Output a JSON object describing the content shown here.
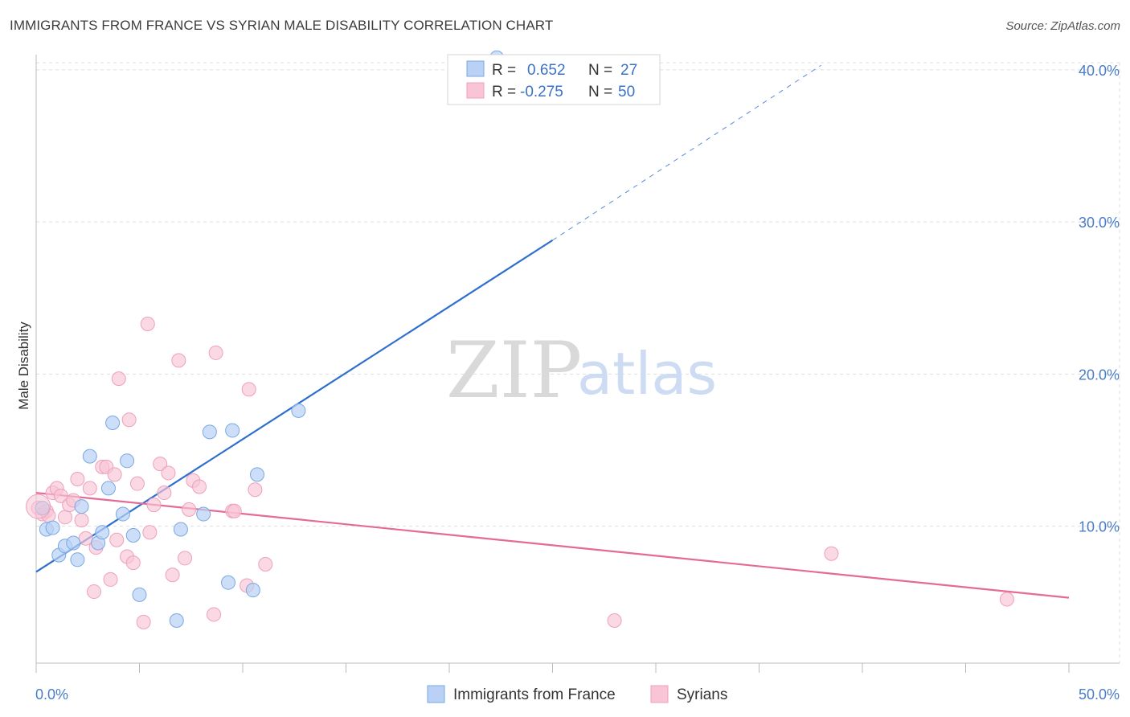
{
  "title": "IMMIGRANTS FROM FRANCE VS SYRIAN MALE DISABILITY CORRELATION CHART",
  "source": "Source: ZipAtlas.com",
  "watermark": {
    "zip": "ZIP",
    "atlas": "atlas"
  },
  "chart_data": {
    "type": "scatter",
    "xlabel": "",
    "ylabel": "Male Disability",
    "xlim": [
      0,
      50
    ],
    "ylim": [
      1,
      41
    ],
    "x_tick_labels": [
      "0.0%",
      "50.0%"
    ],
    "y_ticks": [
      10,
      20,
      30,
      40
    ],
    "y_tick_labels": [
      "10.0%",
      "20.0%",
      "30.0%",
      "40.0%"
    ],
    "grid": true,
    "legend": {
      "placement": "top-center",
      "entries": [
        {
          "r_label": "R =",
          "r_value": "0.652",
          "n_label": "N =",
          "n_value": "27"
        },
        {
          "r_label": "R =",
          "r_value": "-0.275",
          "n_label": "N =",
          "n_value": "50"
        }
      ]
    },
    "bottom_legend": [
      "Immigrants from France",
      "Syrians"
    ],
    "colors": {
      "france_fill": "#b8d1f5",
      "france_stroke": "#7aa7e3",
      "france_line": "#2c6fcf",
      "syrian_fill": "#f8c4d6",
      "syrian_stroke": "#eea0bb",
      "syrian_line": "#e46a98",
      "grid": "#dddddd",
      "axis_text": "#4a7dc8"
    },
    "series": [
      {
        "name": "Immigrants from France",
        "points": [
          [
            0.3,
            11.2
          ],
          [
            0.5,
            9.8
          ],
          [
            0.8,
            9.9
          ],
          [
            1.1,
            8.1
          ],
          [
            1.4,
            8.7
          ],
          [
            1.8,
            8.9
          ],
          [
            2.0,
            7.8
          ],
          [
            2.2,
            11.3
          ],
          [
            2.6,
            14.6
          ],
          [
            3.0,
            8.9
          ],
          [
            3.2,
            9.6
          ],
          [
            3.5,
            12.5
          ],
          [
            3.7,
            16.8
          ],
          [
            4.2,
            10.8
          ],
          [
            4.4,
            14.3
          ],
          [
            4.7,
            9.4
          ],
          [
            5.0,
            5.5
          ],
          [
            6.8,
            3.8
          ],
          [
            7.0,
            9.8
          ],
          [
            8.1,
            10.8
          ],
          [
            8.4,
            16.2
          ],
          [
            9.3,
            6.3
          ],
          [
            9.5,
            16.3
          ],
          [
            10.5,
            5.8
          ],
          [
            10.7,
            13.4
          ],
          [
            12.7,
            17.6
          ],
          [
            22.3,
            40.8
          ]
        ],
        "trend": {
          "x0": 0,
          "y0": 7.0,
          "x1": 25,
          "y1": 28.8,
          "dashed_to_x": 38,
          "dashed_to_y": 40.3
        }
      },
      {
        "name": "Syrians",
        "points": [
          [
            0.1,
            11.2
          ],
          [
            0.3,
            10.8
          ],
          [
            0.5,
            11.0
          ],
          [
            0.6,
            10.7
          ],
          [
            0.8,
            12.2
          ],
          [
            1.0,
            12.5
          ],
          [
            1.2,
            12.0
          ],
          [
            1.4,
            10.6
          ],
          [
            1.6,
            11.4
          ],
          [
            1.8,
            11.7
          ],
          [
            2.0,
            13.1
          ],
          [
            2.2,
            10.4
          ],
          [
            2.4,
            9.2
          ],
          [
            2.6,
            12.5
          ],
          [
            2.8,
            5.7
          ],
          [
            2.9,
            8.6
          ],
          [
            3.2,
            13.9
          ],
          [
            3.4,
            13.9
          ],
          [
            3.6,
            6.5
          ],
          [
            3.8,
            13.4
          ],
          [
            3.9,
            9.1
          ],
          [
            4.0,
            19.7
          ],
          [
            4.4,
            8.0
          ],
          [
            4.5,
            17.0
          ],
          [
            4.7,
            7.6
          ],
          [
            4.9,
            12.8
          ],
          [
            5.2,
            3.7
          ],
          [
            5.4,
            23.3
          ],
          [
            5.5,
            9.6
          ],
          [
            5.7,
            11.4
          ],
          [
            6.0,
            14.1
          ],
          [
            6.2,
            12.2
          ],
          [
            6.4,
            13.5
          ],
          [
            6.6,
            6.8
          ],
          [
            6.9,
            20.9
          ],
          [
            7.2,
            7.9
          ],
          [
            7.4,
            11.1
          ],
          [
            7.6,
            13.0
          ],
          [
            7.9,
            12.6
          ],
          [
            8.6,
            4.2
          ],
          [
            8.7,
            21.4
          ],
          [
            9.5,
            11.0
          ],
          [
            9.6,
            11.0
          ],
          [
            10.2,
            6.1
          ],
          [
            10.3,
            19.0
          ],
          [
            10.6,
            12.4
          ],
          [
            11.1,
            7.5
          ],
          [
            28.0,
            3.8
          ],
          [
            38.5,
            8.2
          ],
          [
            47.0,
            5.2
          ]
        ],
        "trend": {
          "x0": 0,
          "y0": 12.2,
          "x1": 50,
          "y1": 5.3
        }
      }
    ]
  }
}
